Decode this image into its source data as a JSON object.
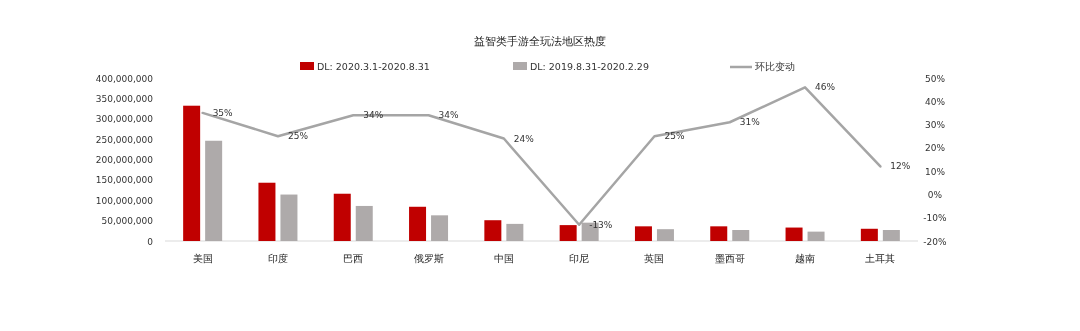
{
  "chart_data": {
    "type": "bar",
    "title": "益智类手游全玩法地区热度",
    "categories": [
      "美国",
      "印度",
      "巴西",
      "俄罗斯",
      "中国",
      "印尼",
      "英国",
      "墨西哥",
      "越南",
      "土耳其"
    ],
    "series": [
      {
        "name": "DL: 2020.3.1-2020.8.31",
        "color": "#c00000",
        "values": [
          332000000,
          143000000,
          116000000,
          84000000,
          51000000,
          39000000,
          36000000,
          36000000,
          33000000,
          30000000
        ]
      },
      {
        "name": "DL: 2019.8.31-2020.2.29",
        "color": "#aeaaaa",
        "values": [
          246000000,
          114000000,
          86000000,
          63000000,
          42000000,
          45000000,
          29000000,
          27000000,
          23000000,
          27000000
        ]
      },
      {
        "name": "环比变动",
        "type": "line",
        "axis": "y2",
        "color": "#a5a5a5",
        "values": [
          35,
          25,
          34,
          34,
          24,
          -13,
          25,
          31,
          46,
          12
        ],
        "value_labels": [
          "35%",
          "25%",
          "34%",
          "34%",
          "24%",
          "-13%",
          "25%",
          "31%",
          "46%",
          "12%"
        ]
      }
    ],
    "ylim": [
      0,
      400000000
    ],
    "yticks": [
      {
        "value": 0,
        "label": "0"
      },
      {
        "value": 50000000,
        "label": "50,000,000"
      },
      {
        "value": 100000000,
        "label": "100,000,000"
      },
      {
        "value": 150000000,
        "label": "150,000,000"
      },
      {
        "value": 200000000,
        "label": "200,000,000"
      },
      {
        "value": 250000000,
        "label": "250,000,000"
      },
      {
        "value": 300000000,
        "label": "300,000,000"
      },
      {
        "value": 350000000,
        "label": "350,000,000"
      },
      {
        "value": 400000000,
        "label": "400,000,000"
      }
    ],
    "y2lim": [
      -20,
      50
    ],
    "y2ticks": [
      {
        "value": -20,
        "label": "-20%"
      },
      {
        "value": -10,
        "label": "-10%"
      },
      {
        "value": 0,
        "label": "0%"
      },
      {
        "value": 10,
        "label": "10%"
      },
      {
        "value": 20,
        "label": "20%"
      },
      {
        "value": 30,
        "label": "30%"
      },
      {
        "value": 40,
        "label": "40%"
      },
      {
        "value": 50,
        "label": "50%"
      }
    ],
    "legend": "top",
    "grid": false
  }
}
